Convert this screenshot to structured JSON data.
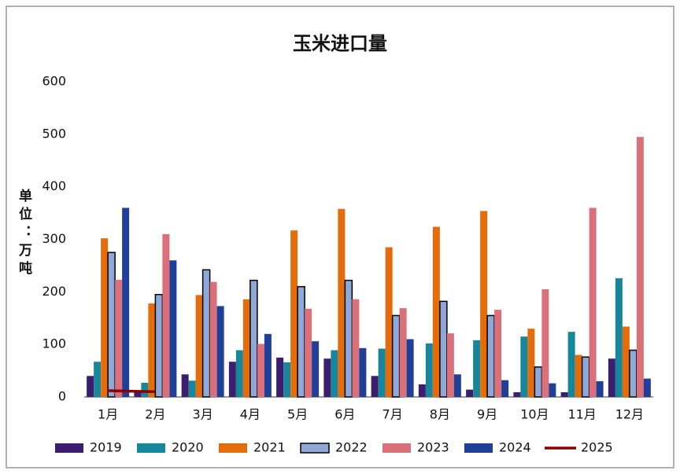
{
  "chart_data": {
    "type": "bar",
    "title": "玉米进口量",
    "y_label": "单位：万吨",
    "categories": [
      "1月",
      "2月",
      "3月",
      "4月",
      "5月",
      "6月",
      "7月",
      "8月",
      "9月",
      "10月",
      "11月",
      "12月"
    ],
    "ylim": [
      0,
      600
    ],
    "yticks": [
      0,
      100,
      200,
      300,
      400,
      500,
      600
    ],
    "grid": false,
    "series": [
      {
        "name": "2019",
        "color": "#3b1f6e",
        "values": [
          40,
          12,
          43,
          67,
          75,
          73,
          40,
          24,
          14,
          9,
          9,
          73
        ]
      },
      {
        "name": "2020",
        "color": "#17869a",
        "values": [
          67,
          27,
          31,
          89,
          66,
          89,
          92,
          102,
          108,
          115,
          124,
          226
        ]
      },
      {
        "name": "2021",
        "color": "#e46c0a",
        "values": [
          302,
          178,
          194,
          186,
          317,
          358,
          285,
          324,
          354,
          130,
          80,
          134
        ]
      },
      {
        "name": "2022",
        "color": "#8fa8d8",
        "edgecolor": "#000000",
        "values": [
          275,
          195,
          242,
          222,
          210,
          222,
          155,
          182,
          155,
          57,
          76,
          89
        ]
      },
      {
        "name": "2023",
        "color": "#d9707a",
        "values": [
          223,
          310,
          219,
          101,
          168,
          186,
          169,
          121,
          166,
          205,
          360,
          495
        ]
      },
      {
        "name": "2024",
        "color": "#1f3f99",
        "values": [
          360,
          260,
          173,
          120,
          106,
          93,
          110,
          43,
          32,
          26,
          30,
          35
        ]
      },
      {
        "name": "2025",
        "type": "line",
        "color": "#8b0000",
        "values": [
          12,
          10,
          null,
          null,
          null,
          null,
          null,
          null,
          null,
          null,
          null,
          null
        ]
      }
    ]
  }
}
